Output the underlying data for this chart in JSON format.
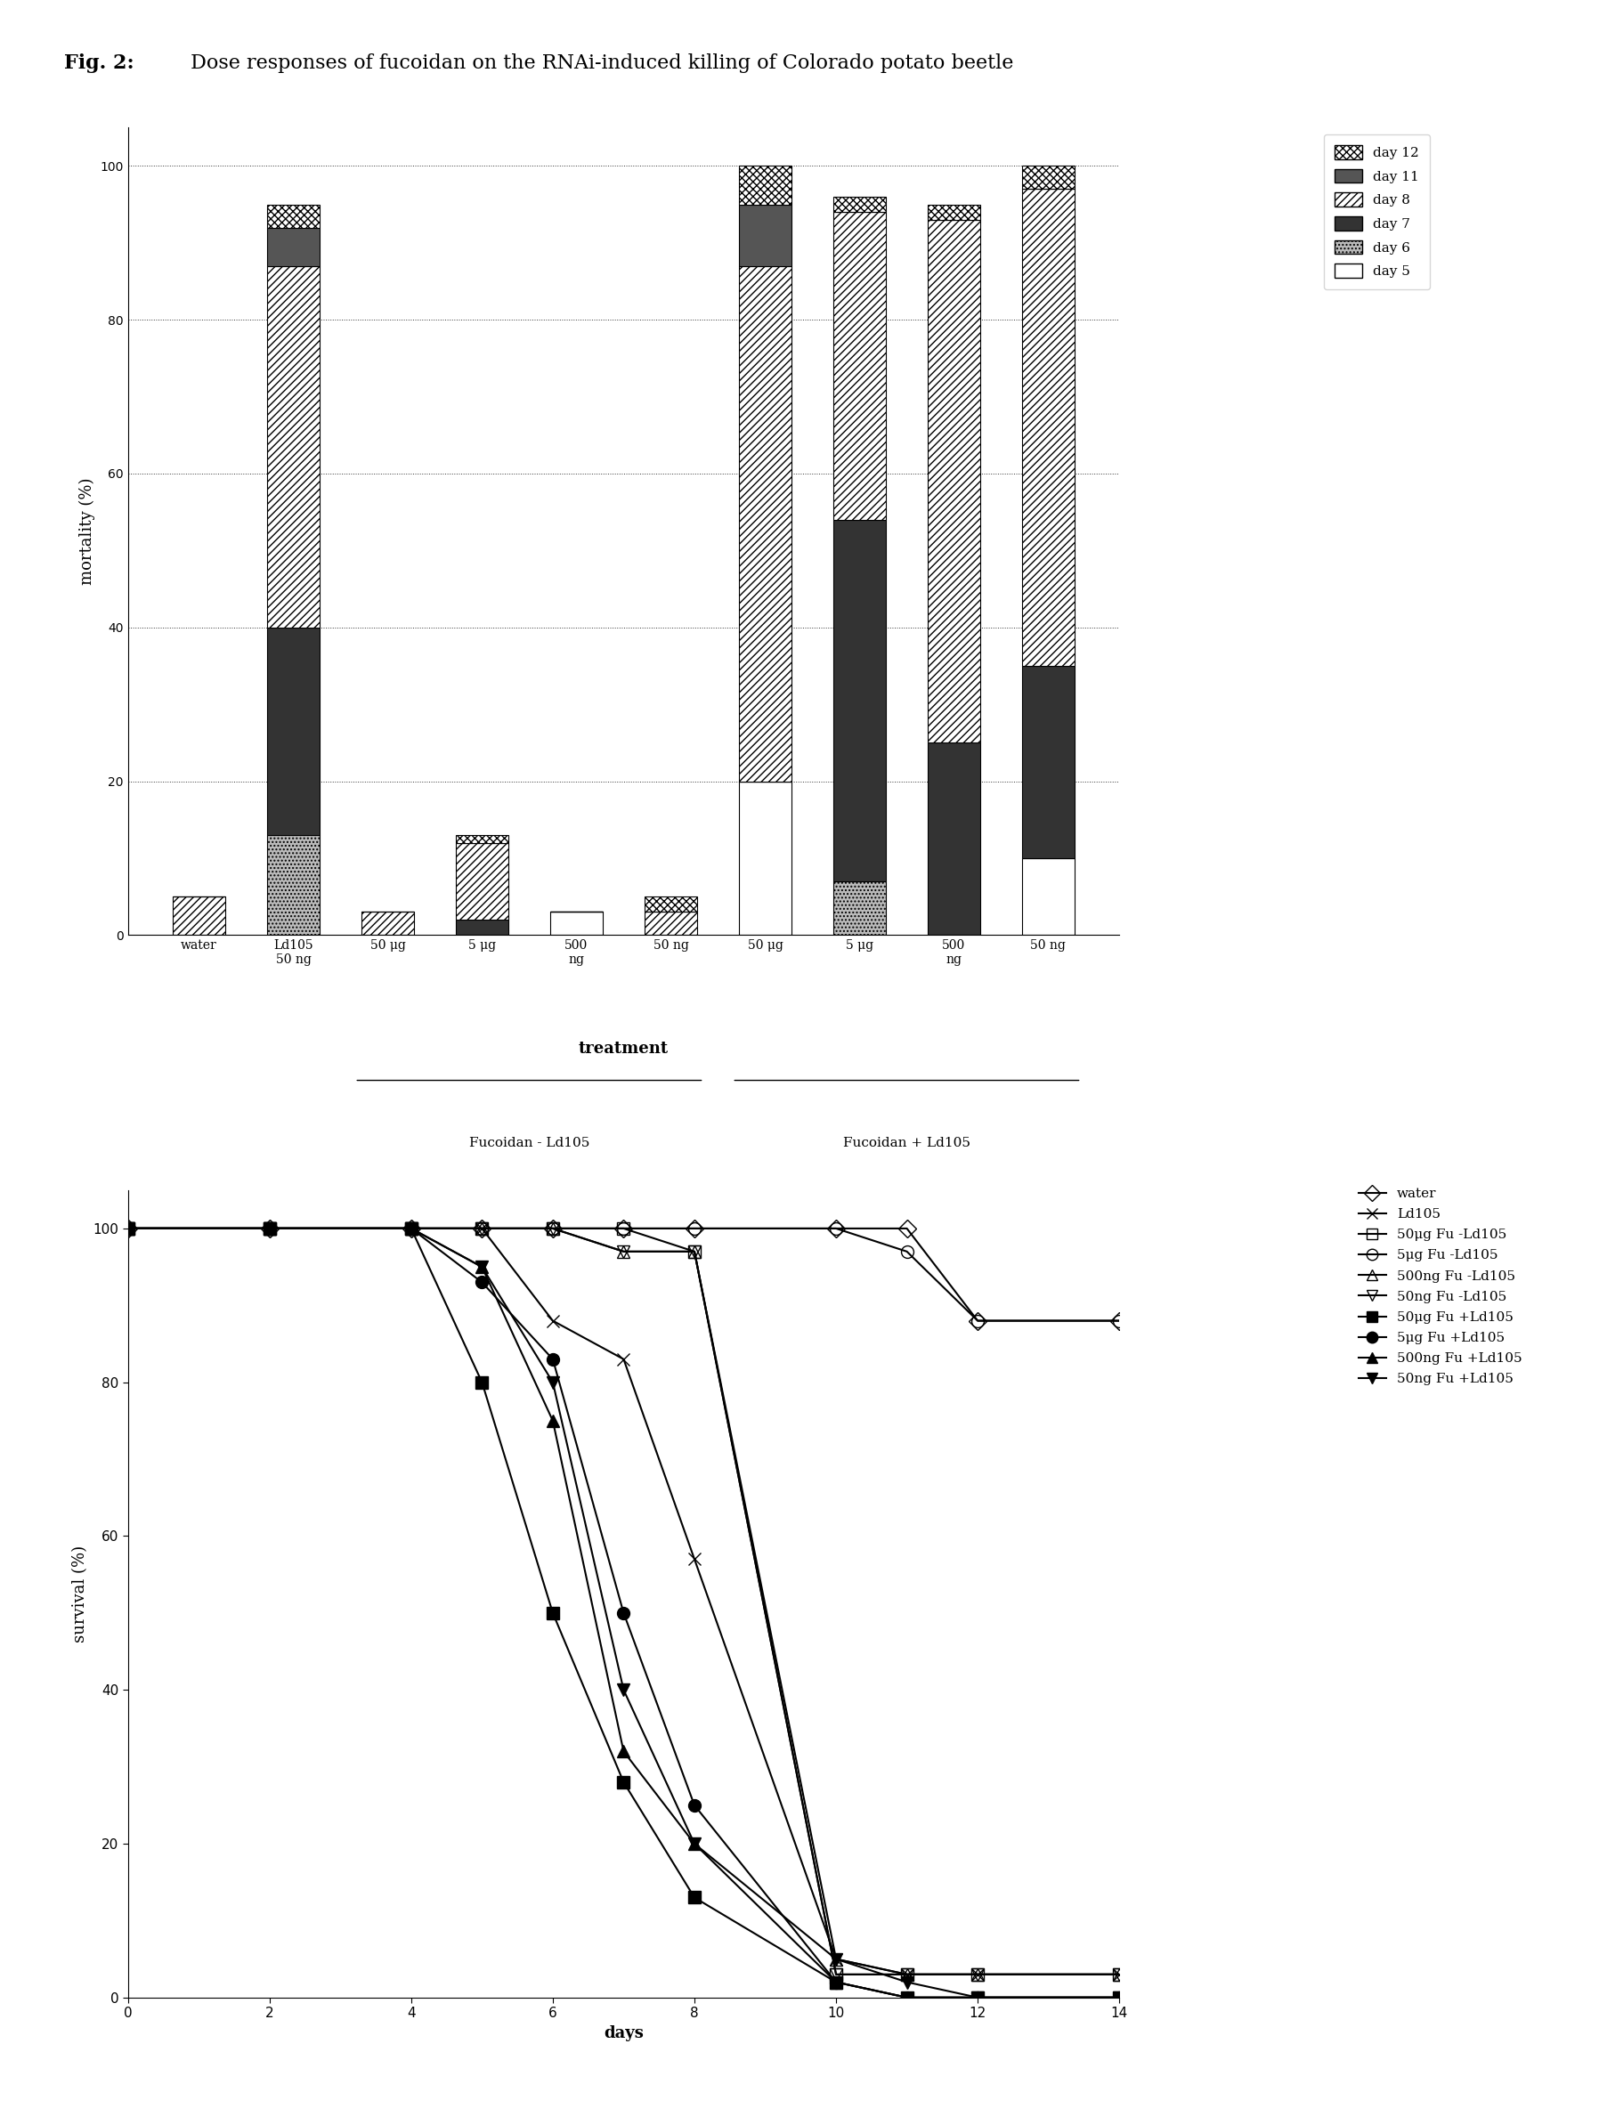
{
  "title_bold": "Fig. 2:",
  "title_rest": " Dose responses of fucoidan on the RNAi-induced killing of Colorado potato beetle",
  "bar_categories": [
    "water",
    "Ld105\n50 ng",
    "50 μg",
    "5 μg",
    "500\nng",
    "50 ng",
    "50 μg",
    "5 μg",
    "500\nng",
    "50 ng"
  ],
  "bar_group_labels": [
    "",
    "",
    "Fucoidan - Ld105",
    "Fucoidan + Ld105"
  ],
  "day5": [
    0,
    0,
    0,
    0,
    3,
    0,
    20,
    0,
    0,
    10
  ],
  "day6": [
    0,
    13,
    0,
    0,
    0,
    0,
    0,
    7,
    0,
    0
  ],
  "day7": [
    0,
    27,
    0,
    2,
    0,
    0,
    0,
    47,
    25,
    25
  ],
  "day8": [
    5,
    47,
    3,
    10,
    0,
    3,
    67,
    40,
    68,
    62
  ],
  "day11": [
    0,
    5,
    0,
    0,
    0,
    0,
    8,
    0,
    0,
    0
  ],
  "day12": [
    0,
    3,
    0,
    1,
    0,
    2,
    5,
    2,
    2,
    3
  ],
  "bar_ylabel": "mortality (%)",
  "bar_xlabel": "treatment",
  "bar_ylim": [
    0,
    105
  ],
  "bar_yticks": [
    0,
    20,
    40,
    60,
    80,
    100
  ],
  "days": [
    0,
    2,
    4,
    5,
    6,
    7,
    8,
    10,
    11,
    12,
    14
  ],
  "survival_water": [
    100,
    100,
    100,
    100,
    100,
    100,
    100,
    100,
    100,
    88,
    88
  ],
  "survival_Ld105": [
    100,
    100,
    100,
    100,
    88,
    83,
    57,
    5,
    3,
    3,
    3
  ],
  "survival_50ug_neg": [
    100,
    100,
    100,
    100,
    100,
    100,
    97,
    3,
    3,
    3,
    3
  ],
  "survival_5ug_neg": [
    100,
    100,
    100,
    100,
    100,
    100,
    100,
    100,
    97,
    88,
    88
  ],
  "survival_500ng_neg": [
    100,
    100,
    100,
    100,
    100,
    97,
    97,
    5,
    3,
    3,
    3
  ],
  "survival_50ng_neg": [
    100,
    100,
    100,
    100,
    100,
    97,
    97,
    3,
    3,
    3,
    3
  ],
  "survival_50ug_pos": [
    100,
    100,
    100,
    80,
    50,
    28,
    13,
    2,
    0,
    0,
    0
  ],
  "survival_5ug_pos": [
    100,
    100,
    100,
    93,
    83,
    50,
    25,
    2,
    0,
    0,
    0
  ],
  "survival_500ng_pos": [
    100,
    100,
    100,
    95,
    75,
    32,
    20,
    2,
    0,
    0,
    0
  ],
  "survival_50ng_pos": [
    100,
    100,
    100,
    95,
    80,
    40,
    20,
    5,
    2,
    0,
    0
  ],
  "survival_ylabel": "survival (%)",
  "survival_xlabel": "days",
  "survival_ylim": [
    0,
    105
  ],
  "survival_xlim": [
    0,
    14
  ],
  "survival_yticks": [
    0,
    20,
    40,
    60,
    80,
    100
  ],
  "survival_xticks": [
    0,
    2,
    4,
    6,
    8,
    10,
    12,
    14
  ],
  "legend_labels": [
    "water",
    "Ld105",
    "50μg Fu -Ld105",
    "5μg Fu -Ld105",
    "500ng Fu -Ld105",
    "50ng Fu -Ld105",
    "50μg Fu +Ld105",
    "5μg Fu +Ld105",
    "500ng Fu +Ld105",
    "50ng Fu +Ld105"
  ]
}
